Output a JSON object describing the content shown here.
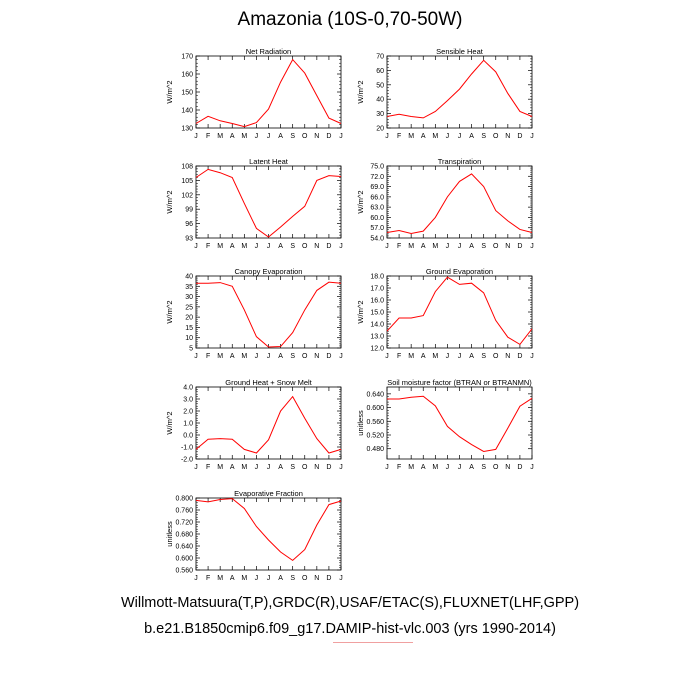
{
  "title": "Amazonia (10S-0,70-50W)",
  "captions": {
    "line1": "Willmott-Matsuura(T,P),GRDC(R),USAF/ETAC(S),FLUXNET(LHF,GPP)",
    "line2": "b.e21.B1850cmip6.f09_g17.DAMIP-hist-vlc.003 (yrs 1990-2014)"
  },
  "colors": {
    "series": "#ff0000",
    "axis": "#000000"
  },
  "chart_data": [
    {
      "type": "line",
      "title": "Net Radiation",
      "ylabel": "W/m^2",
      "categories": [
        "J",
        "F",
        "M",
        "A",
        "M",
        "J",
        "J",
        "A",
        "S",
        "O",
        "N",
        "D",
        "J"
      ],
      "ylim": [
        130,
        170
      ],
      "yticks": [
        "130",
        "140",
        "150",
        "160",
        "170"
      ],
      "values": [
        132.5,
        136.5,
        134.0,
        132.5,
        130.8,
        133.0,
        140.5,
        155.5,
        168.0,
        160.5,
        148.0,
        135.5,
        132.5
      ]
    },
    {
      "type": "line",
      "title": "Sensible Heat",
      "ylabel": "W/m^2",
      "categories": [
        "J",
        "F",
        "M",
        "A",
        "M",
        "J",
        "J",
        "A",
        "S",
        "O",
        "N",
        "D",
        "J"
      ],
      "ylim": [
        20,
        70
      ],
      "yticks": [
        "20",
        "30",
        "40",
        "50",
        "60",
        "70"
      ],
      "values": [
        28.0,
        29.5,
        28.0,
        27.0,
        31.5,
        39.0,
        47.0,
        57.5,
        67.0,
        59.0,
        44.0,
        31.5,
        28.0
      ]
    },
    {
      "type": "line",
      "title": "Latent Heat",
      "ylabel": "W/m^2",
      "categories": [
        "J",
        "F",
        "M",
        "A",
        "M",
        "J",
        "J",
        "A",
        "S",
        "O",
        "N",
        "D",
        "J"
      ],
      "ylim": [
        93,
        108
      ],
      "yticks": [
        "93",
        "96",
        "99",
        "102",
        "105",
        "108"
      ],
      "values": [
        105.6,
        107.3,
        106.6,
        105.6,
        100.2,
        95.0,
        93.2,
        95.3,
        97.5,
        99.6,
        105.0,
        106.0,
        105.8
      ]
    },
    {
      "type": "line",
      "title": "Transpiration",
      "ylabel": "W/m^2",
      "categories": [
        "J",
        "F",
        "M",
        "A",
        "M",
        "J",
        "J",
        "A",
        "S",
        "O",
        "N",
        "D",
        "J"
      ],
      "ylim": [
        54,
        75
      ],
      "yticks": [
        "54.0",
        "57.0",
        "60.0",
        "63.0",
        "66.0",
        "69.0",
        "72.0",
        "75.0"
      ],
      "values": [
        55.6,
        56.2,
        55.3,
        56.0,
        60.0,
        66.0,
        70.5,
        72.7,
        69.0,
        62.0,
        59.0,
        56.5,
        55.6
      ]
    },
    {
      "type": "line",
      "title": "Canopy Evaporation",
      "ylabel": "W/m^2",
      "categories": [
        "J",
        "F",
        "M",
        "A",
        "M",
        "J",
        "J",
        "A",
        "S",
        "O",
        "N",
        "D",
        "J"
      ],
      "ylim": [
        5,
        40
      ],
      "yticks": [
        "5",
        "10",
        "15",
        "20",
        "25",
        "30",
        "35",
        "40"
      ],
      "values": [
        36.5,
        36.5,
        36.8,
        35.0,
        23.5,
        10.5,
        5.5,
        5.7,
        12.5,
        23.5,
        33.0,
        37.0,
        36.5
      ]
    },
    {
      "type": "line",
      "title": "Ground Evaporation",
      "ylabel": "W/m^2",
      "categories": [
        "J",
        "F",
        "M",
        "A",
        "M",
        "J",
        "J",
        "A",
        "S",
        "O",
        "N",
        "D",
        "J"
      ],
      "ylim": [
        12,
        18
      ],
      "yticks": [
        "12.0",
        "13.0",
        "14.0",
        "15.0",
        "16.0",
        "17.0",
        "18.0"
      ],
      "values": [
        13.4,
        14.5,
        14.5,
        14.7,
        16.7,
        17.9,
        17.3,
        17.4,
        16.6,
        14.3,
        12.9,
        12.3,
        13.6
      ]
    },
    {
      "type": "line",
      "title": "Ground Heat + Snow Melt",
      "ylabel": "W/m^2",
      "categories": [
        "J",
        "F",
        "M",
        "A",
        "M",
        "J",
        "J",
        "A",
        "S",
        "O",
        "N",
        "D",
        "J"
      ],
      "ylim": [
        -2,
        4
      ],
      "yticks": [
        "-2.0",
        "-1.0",
        "0.0",
        "1.0",
        "2.0",
        "3.0",
        "4.0"
      ],
      "values": [
        -1.2,
        -0.35,
        -0.3,
        -0.35,
        -1.2,
        -1.5,
        -0.4,
        2.0,
        3.2,
        1.4,
        -0.3,
        -1.5,
        -1.2
      ]
    },
    {
      "type": "line",
      "title": "Soil moisture factor (BTRAN or BTRANMN)",
      "ylabel": "unitless",
      "categories": [
        "J",
        "F",
        "M",
        "A",
        "M",
        "J",
        "J",
        "A",
        "S",
        "O",
        "N",
        "D",
        "J"
      ],
      "ylim": [
        0.45,
        0.66
      ],
      "yticks": [
        "0.480",
        "0.520",
        "0.560",
        "0.600",
        "0.640"
      ],
      "values": [
        0.625,
        0.625,
        0.63,
        0.633,
        0.605,
        0.545,
        0.515,
        0.492,
        0.472,
        0.478,
        0.54,
        0.604,
        0.627
      ]
    },
    {
      "type": "line",
      "title": "Evaporative Fraction",
      "ylabel": "unitless",
      "categories": [
        "J",
        "F",
        "M",
        "A",
        "M",
        "J",
        "J",
        "A",
        "S",
        "O",
        "N",
        "D",
        "J"
      ],
      "ylim": [
        0.56,
        0.8
      ],
      "yticks": [
        "0.560",
        "0.600",
        "0.640",
        "0.680",
        "0.720",
        "0.760",
        "0.800"
      ],
      "values": [
        0.792,
        0.787,
        0.795,
        0.798,
        0.765,
        0.705,
        0.66,
        0.62,
        0.592,
        0.628,
        0.71,
        0.778,
        0.79
      ]
    }
  ]
}
